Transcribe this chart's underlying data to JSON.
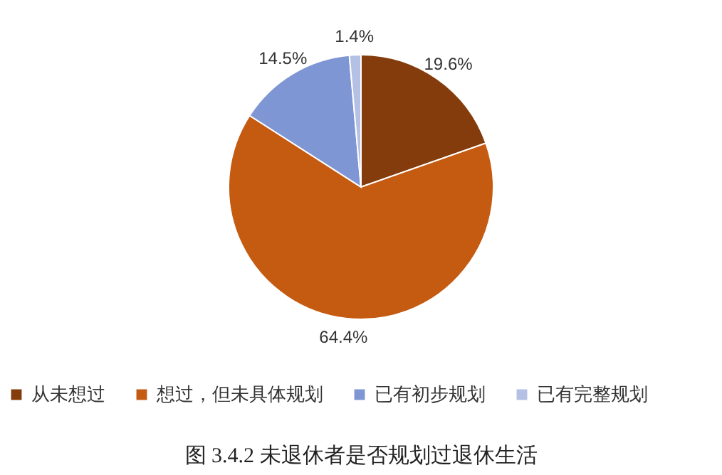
{
  "chart_data": {
    "type": "pie",
    "title": "图 3.4.2 未退休者是否规划过退休生活",
    "categories": [
      "从未想过",
      "想过，但未具体规划",
      "已有初步规划",
      "已有完整规划"
    ],
    "values": [
      19.6,
      64.4,
      14.5,
      1.4
    ],
    "colors": [
      "#843c0c",
      "#c55a11",
      "#7f96d4",
      "#b4c0e4"
    ],
    "value_labels": [
      "19.6%",
      "64.4%",
      "14.5%",
      "1.4%"
    ],
    "legend": "bottom"
  }
}
